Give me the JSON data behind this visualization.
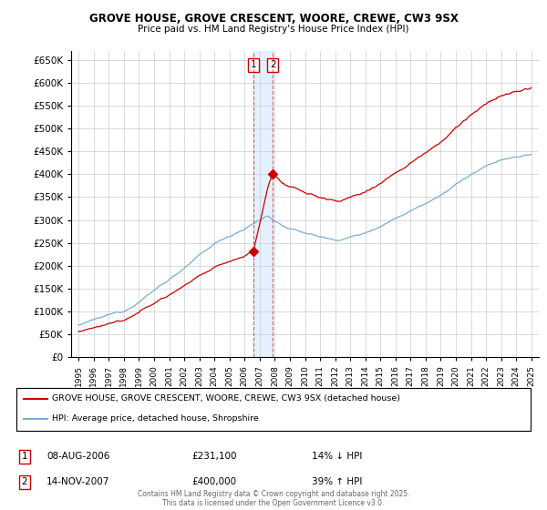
{
  "title": "GROVE HOUSE, GROVE CRESCENT, WOORE, CREWE, CW3 9SX",
  "subtitle": "Price paid vs. HM Land Registry's House Price Index (HPI)",
  "legend_label_red": "GROVE HOUSE, GROVE CRESCENT, WOORE, CREWE, CW3 9SX (detached house)",
  "legend_label_blue": "HPI: Average price, detached house, Shropshire",
  "footer": "Contains HM Land Registry data © Crown copyright and database right 2025.\nThis data is licensed under the Open Government Licence v3.0.",
  "transactions": [
    {
      "label": "1",
      "date": "08-AUG-2006",
      "price": 231100,
      "price_str": "£231,100",
      "hpi_change": "14% ↓ HPI"
    },
    {
      "label": "2",
      "date": "14-NOV-2007",
      "price": 400000,
      "price_str": "£400,000",
      "hpi_change": "39% ↑ HPI"
    }
  ],
  "transaction_dates": [
    2006.58,
    2007.87
  ],
  "transaction_prices": [
    231100,
    400000
  ],
  "ylim": [
    0,
    670000
  ],
  "yticks": [
    0,
    50000,
    100000,
    150000,
    200000,
    250000,
    300000,
    350000,
    400000,
    450000,
    500000,
    550000,
    600000,
    650000
  ],
  "xlim": [
    1994.5,
    2025.5
  ],
  "red_color": "#cc0000",
  "blue_color": "#7aadd4",
  "shade_color": "#ddeeff",
  "background_color": "#ffffff",
  "grid_color": "#cccccc"
}
